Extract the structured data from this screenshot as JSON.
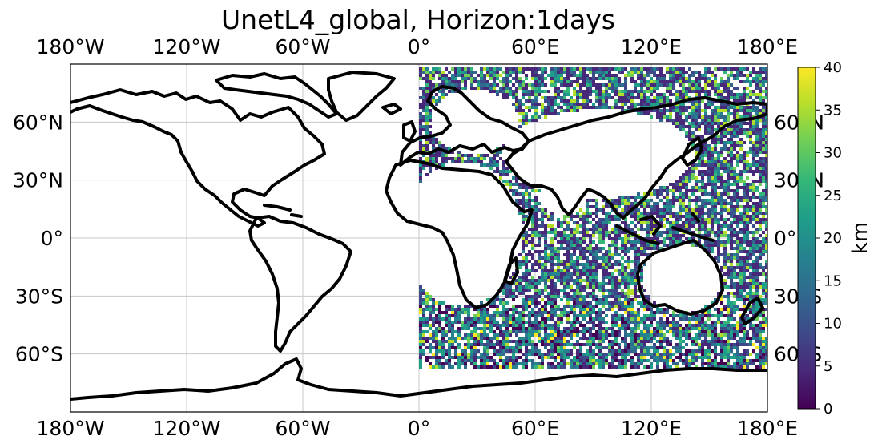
{
  "title": "UnetL4_global, Horizon:1days",
  "map": {
    "lon_range": [
      -180,
      180
    ],
    "lat_range": [
      -90,
      90
    ],
    "lon_ticks": [
      -180,
      -120,
      -60,
      0,
      60,
      120,
      180
    ],
    "lat_ticks": [
      60,
      30,
      0,
      -30,
      -60
    ],
    "lon_labels": [
      "180°W",
      "120°W",
      "60°W",
      "0°",
      "60°E",
      "120°E",
      "180°E"
    ],
    "lat_labels": [
      "60°N",
      "30°N",
      "0°",
      "30°S",
      "60°S"
    ],
    "gridlines": true,
    "coastlines": true,
    "colormap": "viridis",
    "data_note_region_lon": [
      0,
      180
    ]
  },
  "colorbar": {
    "label": "km",
    "range": [
      0,
      40
    ],
    "ticks": [
      "0",
      "5",
      "10",
      "15",
      "20",
      "25",
      "30",
      "35",
      "40"
    ],
    "colors": [
      "#440154",
      "#482878",
      "#3e4989",
      "#31688e",
      "#26828e",
      "#1f9e89",
      "#35b779",
      "#6ece58",
      "#b5de2b",
      "#fde725"
    ]
  }
}
